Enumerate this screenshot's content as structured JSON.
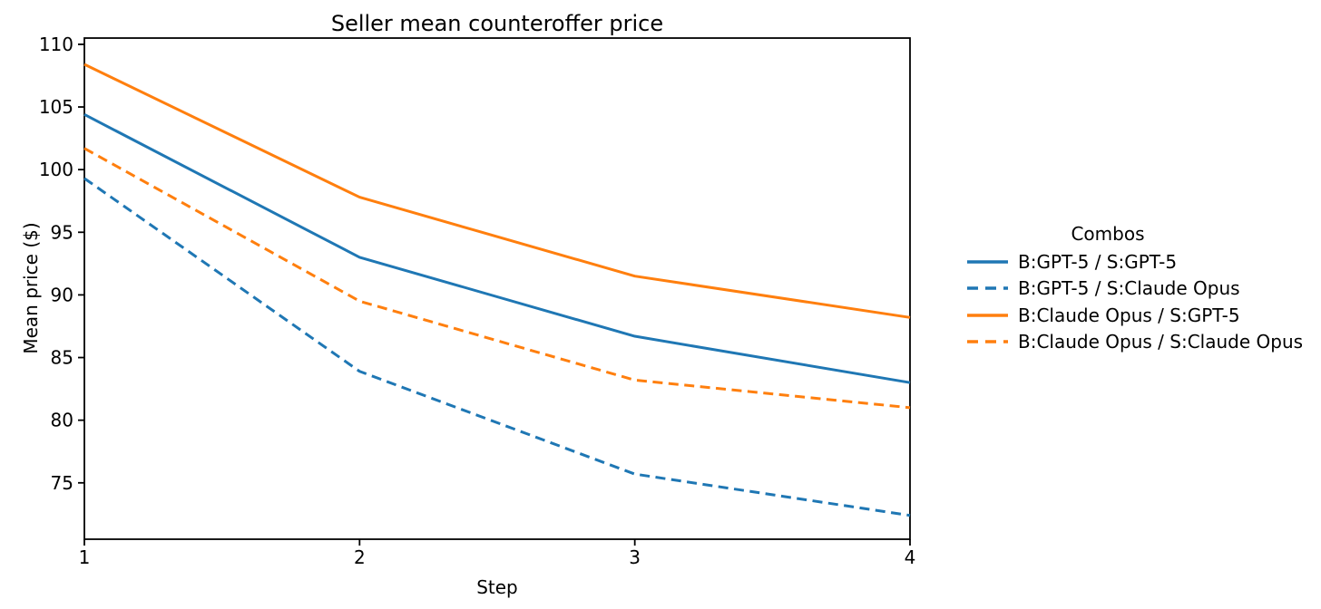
{
  "chart_data": {
    "type": "line",
    "title": "Seller mean counteroffer price",
    "xlabel": "Step",
    "ylabel": "Mean price ($)",
    "legend_title": "Combos",
    "legend_position": "right-outside",
    "grid": false,
    "x": [
      1,
      2,
      3,
      4
    ],
    "xticks": [
      1,
      2,
      3,
      4
    ],
    "yticks": [
      75,
      80,
      85,
      90,
      95,
      100,
      105,
      110
    ],
    "xlim": [
      1,
      4
    ],
    "ylim": [
      70.5,
      110.5
    ],
    "series": [
      {
        "name": "B:GPT-5 / S:GPT-5",
        "color": "#1f77b4",
        "dash": "solid",
        "values": [
          104.4,
          93.0,
          86.7,
          83.0
        ]
      },
      {
        "name": "B:GPT-5 / S:Claude Opus",
        "color": "#1f77b4",
        "dash": "dashed",
        "values": [
          99.3,
          83.9,
          75.7,
          72.4
        ]
      },
      {
        "name": "B:Claude Opus / S:GPT-5",
        "color": "#ff7f0e",
        "dash": "solid",
        "values": [
          108.4,
          97.8,
          91.5,
          88.2
        ]
      },
      {
        "name": "B:Claude Opus / S:Claude Opus",
        "color": "#ff7f0e",
        "dash": "dashed",
        "values": [
          101.7,
          89.5,
          83.2,
          81.0
        ]
      }
    ],
    "axis_color": "#000000"
  }
}
